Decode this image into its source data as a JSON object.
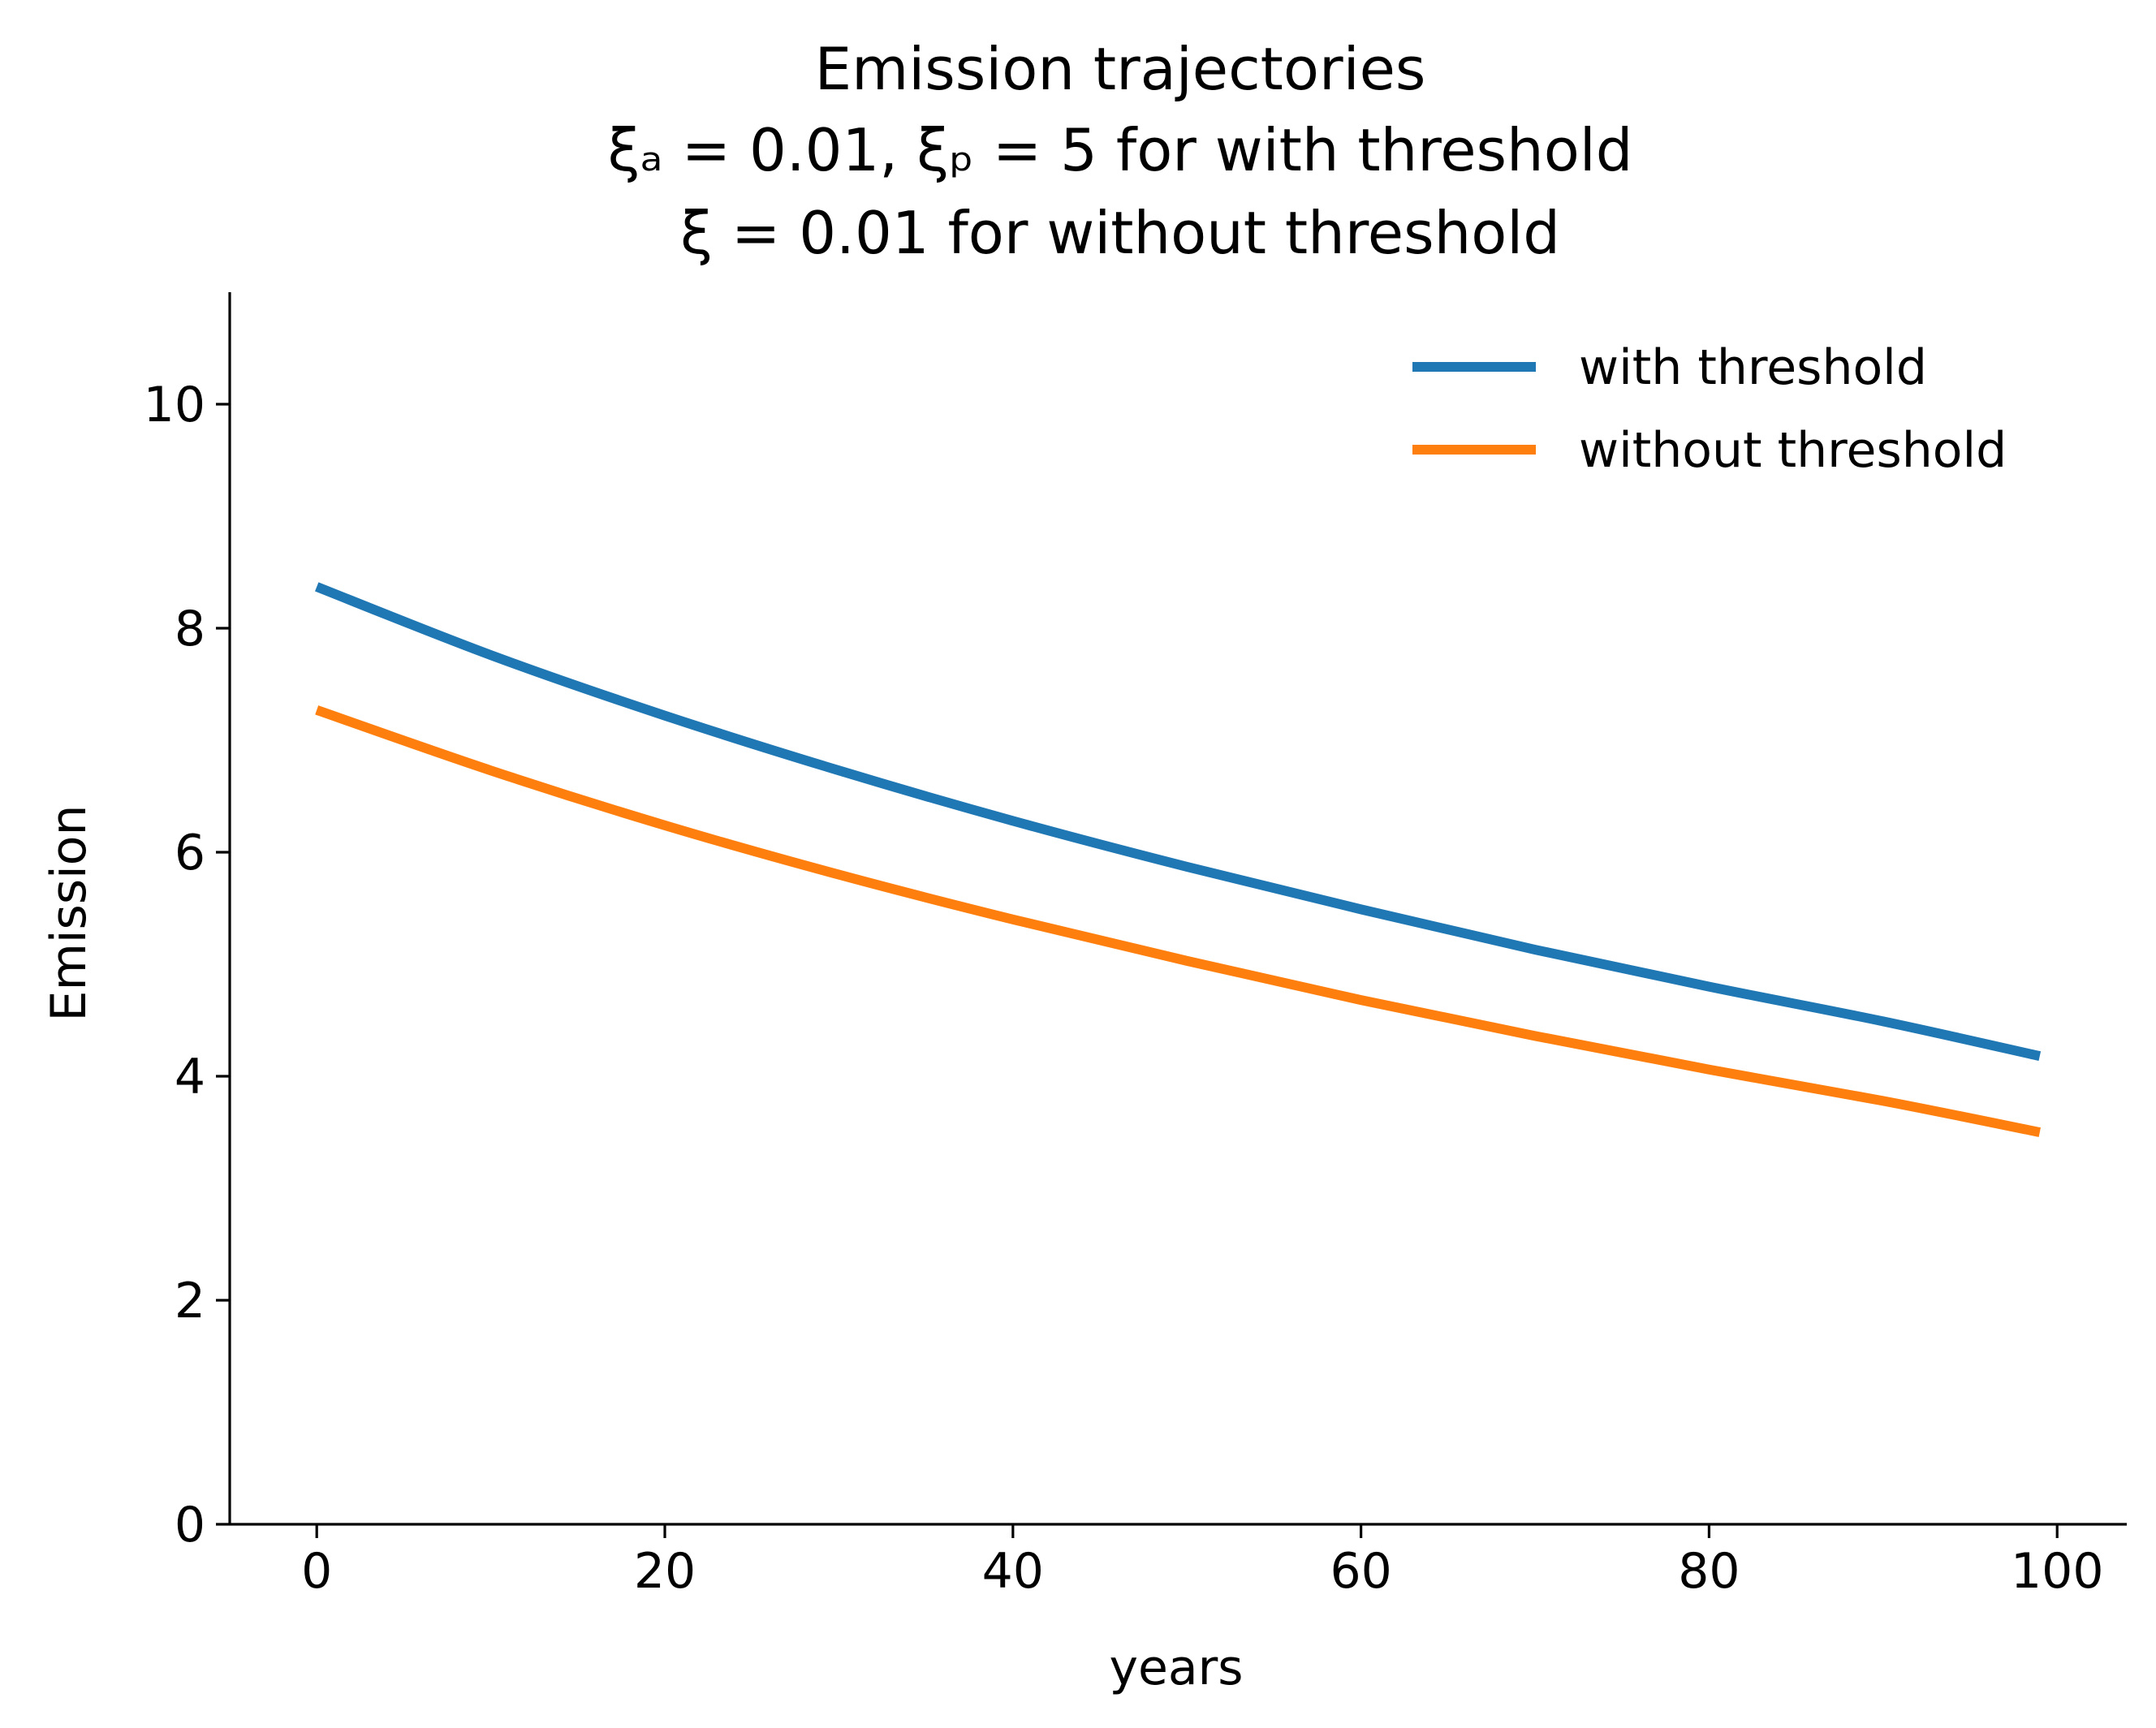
{
  "chart_data": {
    "type": "line",
    "title_lines": [
      "Emission trajectories",
      "ξₐ = 0.01, ξₚ = 5 for with threshold",
      "ξ = 0.01 for without threshold"
    ],
    "xlabel": "years",
    "ylabel": "Emission",
    "xlim": [
      -5,
      104
    ],
    "ylim": [
      0,
      11
    ],
    "xticks": [
      0,
      20,
      40,
      60,
      80,
      100
    ],
    "yticks": [
      0,
      2,
      4,
      6,
      8,
      10
    ],
    "legend_position": "top-right",
    "grid": false,
    "series": [
      {
        "name": "with threshold",
        "color": "#1f77b4",
        "x": [
          0,
          10,
          20,
          30,
          40,
          50,
          60,
          70,
          80,
          90,
          99
        ],
        "y": [
          8.37,
          7.76,
          7.22,
          6.73,
          6.28,
          5.87,
          5.49,
          5.13,
          4.8,
          4.49,
          4.18
        ]
      },
      {
        "name": "without threshold",
        "color": "#ff7f0e",
        "x": [
          0,
          10,
          20,
          30,
          40,
          50,
          60,
          70,
          80,
          90,
          99
        ],
        "y": [
          7.27,
          6.73,
          6.24,
          5.8,
          5.4,
          5.03,
          4.68,
          4.36,
          4.06,
          3.78,
          3.5
        ]
      }
    ]
  }
}
